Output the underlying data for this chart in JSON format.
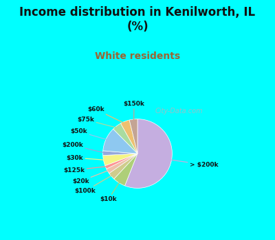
{
  "title": "Income distribution in Kenilworth, IL\n(%)",
  "subtitle": "White residents",
  "title_color": "#111111",
  "subtitle_color": "#996633",
  "bg_color": "#00FFFF",
  "chart_bg": "#E0F0E0",
  "labels": [
    "> $200k",
    "$10k",
    "$100k",
    "$20k",
    "$125k",
    "$30k",
    "$200k",
    "$50k",
    "$75k",
    "$60k",
    "$150k"
  ],
  "values": [
    52.0,
    5.5,
    3.2,
    2.2,
    1.5,
    4.5,
    2.0,
    10.5,
    4.0,
    4.0,
    3.5
  ],
  "colors": [
    "#C5AEE0",
    "#AECF78",
    "#D0CC8C",
    "#EEC0A8",
    "#FF9494",
    "#F4F484",
    "#96A8DC",
    "#8EC8F0",
    "#AADCA0",
    "#EEC070",
    "#C4A494"
  ],
  "line_colors": [
    "#C5AEE0",
    "#AECF78",
    "#D0CC8C",
    "#EEC0A8",
    "#FF9494",
    "#F4F484",
    "#96A8DC",
    "#8EC8F0",
    "#AADCA0",
    "#EEC070",
    "#C4A494"
  ],
  "figsize": [
    4.0,
    3.5
  ],
  "dpi": 100,
  "watermark": "City-Data.com"
}
